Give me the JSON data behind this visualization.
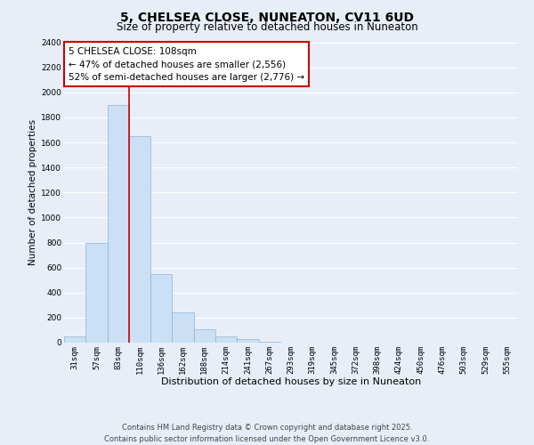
{
  "title": "5, CHELSEA CLOSE, NUNEATON, CV11 6UD",
  "subtitle": "Size of property relative to detached houses in Nuneaton",
  "xlabel": "Distribution of detached houses by size in Nuneaton",
  "ylabel": "Number of detached properties",
  "bar_color": "#cce0f5",
  "bar_edge_color": "#8ab4d8",
  "background_color": "#e8eef8",
  "grid_color": "#ffffff",
  "categories": [
    "31sqm",
    "57sqm",
    "83sqm",
    "110sqm",
    "136sqm",
    "162sqm",
    "188sqm",
    "214sqm",
    "241sqm",
    "267sqm",
    "293sqm",
    "319sqm",
    "345sqm",
    "372sqm",
    "398sqm",
    "424sqm",
    "450sqm",
    "476sqm",
    "503sqm",
    "529sqm",
    "555sqm"
  ],
  "values": [
    50,
    800,
    1900,
    1650,
    550,
    240,
    110,
    50,
    30,
    5,
    2,
    1,
    0,
    0,
    0,
    0,
    0,
    0,
    0,
    0,
    0
  ],
  "ylim": [
    0,
    2400
  ],
  "yticks": [
    0,
    200,
    400,
    600,
    800,
    1000,
    1200,
    1400,
    1600,
    1800,
    2000,
    2200,
    2400
  ],
  "vline_x": 2.5,
  "vline_color": "#cc0000",
  "annotation_title": "5 CHELSEA CLOSE: 108sqm",
  "annotation_line1": "← 47% of detached houses are smaller (2,556)",
  "annotation_line2": "52% of semi-detached houses are larger (2,776) →",
  "annotation_box_color": "#ffffff",
  "annotation_border_color": "#cc0000",
  "footer_line1": "Contains HM Land Registry data © Crown copyright and database right 2025.",
  "footer_line2": "Contains public sector information licensed under the Open Government Licence v3.0.",
  "title_fontsize": 10,
  "subtitle_fontsize": 8.5,
  "xlabel_fontsize": 8,
  "ylabel_fontsize": 7.5,
  "tick_fontsize": 6.5,
  "annotation_fontsize": 7.5,
  "footer_fontsize": 6
}
